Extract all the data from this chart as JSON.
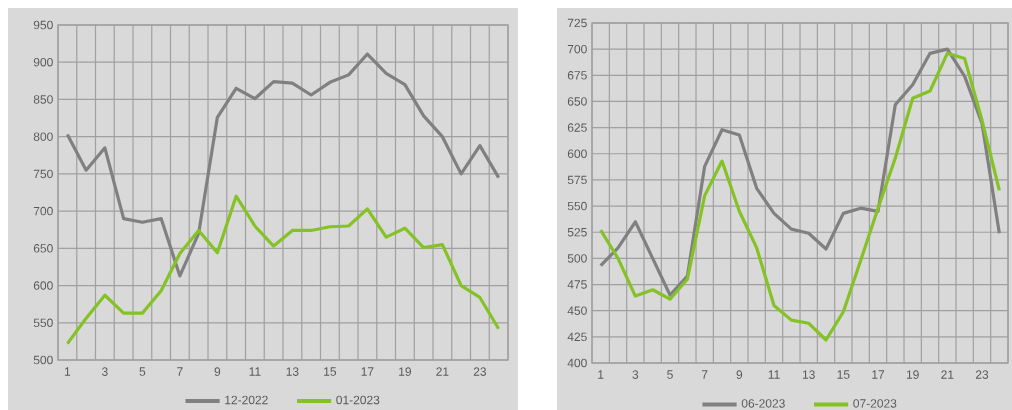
{
  "chart_data": [
    {
      "type": "line",
      "categories": [
        "1",
        null,
        "3",
        null,
        "5",
        null,
        "7",
        null,
        "9",
        null,
        "11",
        null,
        "13",
        null,
        "15",
        null,
        "17",
        null,
        "19",
        null,
        "21",
        null,
        "23",
        null
      ],
      "ylim": [
        500,
        950
      ],
      "yticks": [
        500,
        550,
        600,
        650,
        700,
        750,
        800,
        850,
        900,
        950
      ],
      "grid": true,
      "legend": "bottom",
      "marker": "none",
      "line_style": "solid",
      "series": [
        {
          "name": "12-2022",
          "color": "#808080",
          "values": [
            803,
            755,
            785,
            690,
            685,
            690,
            613,
            670,
            826,
            865,
            851,
            874,
            872,
            856,
            873,
            883,
            911,
            885,
            870,
            828,
            800,
            750,
            788,
            745
          ]
        },
        {
          "name": "01-2023",
          "color": "#84c225",
          "values": [
            522,
            556,
            587,
            563,
            563,
            593,
            643,
            674,
            644,
            720,
            680,
            653,
            674,
            674,
            679,
            680,
            703,
            665,
            677,
            651,
            655,
            600,
            584,
            542
          ]
        }
      ]
    },
    {
      "type": "line",
      "categories": [
        "1",
        null,
        "3",
        null,
        "5",
        null,
        "7",
        null,
        "9",
        null,
        "11",
        null,
        "13",
        null,
        "15",
        null,
        "17",
        null,
        "19",
        null,
        "21",
        null,
        "23",
        null
      ],
      "ylim": [
        400,
        725
      ],
      "yticks": [
        400,
        425,
        450,
        475,
        500,
        525,
        550,
        575,
        600,
        625,
        650,
        675,
        700,
        725
      ],
      "grid": true,
      "legend": "bottom",
      "marker": "none",
      "line_style": "solid",
      "series": [
        {
          "name": "06-2023",
          "color": "#808080",
          "values": [
            493,
            510,
            535,
            500,
            465,
            483,
            588,
            623,
            618,
            567,
            543,
            528,
            524,
            509,
            543,
            548,
            545,
            647,
            666,
            696,
            700,
            674,
            629,
            524
          ]
        },
        {
          "name": "07-2023",
          "color": "#84c225",
          "values": [
            527,
            500,
            464,
            470,
            461,
            480,
            560,
            593,
            545,
            510,
            455,
            441,
            438,
            422,
            449,
            498,
            548,
            596,
            653,
            660,
            696,
            691,
            632,
            565
          ]
        }
      ]
    }
  ]
}
